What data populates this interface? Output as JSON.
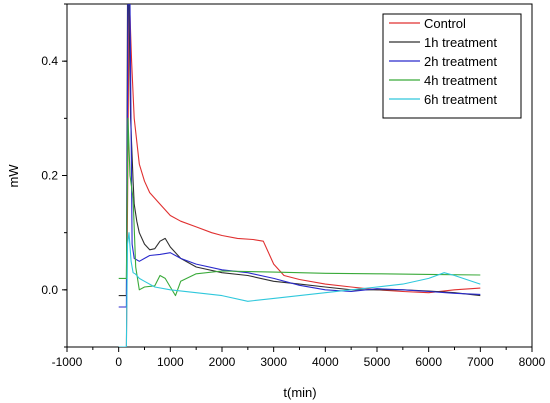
{
  "chart_data": {
    "type": "line",
    "xlabel": "t(min)",
    "ylabel": "mW",
    "xlim": [
      -1000,
      8000
    ],
    "ylim": [
      -0.1,
      0.5
    ],
    "xticks": [
      -1000,
      0,
      1000,
      2000,
      3000,
      4000,
      5000,
      6000,
      7000,
      8000
    ],
    "yticks": [
      0.0,
      0.2,
      0.4
    ],
    "xtick_labels": [
      "-1000",
      "0",
      "1000",
      "2000",
      "3000",
      "4000",
      "5000",
      "6000",
      "7000",
      "8000"
    ],
    "ytick_labels": [
      "0.0",
      "0.2",
      "0.4"
    ],
    "grid": false,
    "legend_position": "top-right",
    "series": [
      {
        "name": "Control",
        "color": "#e03030",
        "x": [
          0,
          150,
          180,
          200,
          220,
          250,
          300,
          400,
          500,
          600,
          800,
          1000,
          1200,
          1500,
          1800,
          2000,
          2300,
          2600,
          2800,
          3000,
          3200,
          3500,
          4000,
          4500,
          5000,
          5500,
          6000,
          6500,
          7000
        ],
        "y": [
          -0.1,
          -0.1,
          0.25,
          0.5,
          0.48,
          0.4,
          0.3,
          0.22,
          0.19,
          0.17,
          0.15,
          0.13,
          0.12,
          0.11,
          0.1,
          0.095,
          0.09,
          0.088,
          0.085,
          0.045,
          0.025,
          0.018,
          0.01,
          0.005,
          0.0,
          -0.003,
          -0.005,
          0.0,
          0.003
        ]
      },
      {
        "name": "1h treatment",
        "color": "#303030",
        "x": [
          0,
          150,
          170,
          200,
          230,
          280,
          300,
          350,
          400,
          500,
          600,
          700,
          800,
          900,
          1000,
          1200,
          1500,
          2000,
          2500,
          3000,
          3500,
          4000,
          4500,
          5000,
          5500,
          6000,
          6500,
          7000
        ],
        "y": [
          -0.01,
          -0.01,
          0.5,
          0.5,
          0.3,
          0.19,
          0.15,
          0.12,
          0.1,
          0.08,
          0.07,
          0.072,
          0.085,
          0.09,
          0.075,
          0.055,
          0.04,
          0.03,
          0.025,
          0.015,
          0.01,
          0.005,
          0.0,
          0.0,
          0.0,
          -0.002,
          -0.005,
          -0.01
        ]
      },
      {
        "name": "2h treatment",
        "color": "#2a2acc",
        "x": [
          0,
          150,
          180,
          220,
          260,
          300,
          400,
          500,
          600,
          800,
          1000,
          1200,
          1500,
          2000,
          2500,
          3000,
          3500,
          4000,
          4500,
          5000,
          5500,
          6000,
          6500,
          7000
        ],
        "y": [
          -0.03,
          -0.03,
          0.5,
          0.5,
          0.08,
          0.055,
          0.05,
          0.055,
          0.06,
          0.062,
          0.065,
          0.055,
          0.045,
          0.035,
          0.03,
          0.02,
          0.008,
          0.0,
          -0.003,
          0.002,
          0.0,
          -0.003,
          -0.006,
          -0.008
        ]
      },
      {
        "name": "4h treatment",
        "color": "#3aaa3a",
        "x": [
          0,
          150,
          180,
          220,
          280,
          330,
          400,
          500,
          700,
          800,
          900,
          1000,
          1100,
          1200,
          1500,
          2000,
          3000,
          4000,
          5000,
          6000,
          7000
        ],
        "y": [
          0.02,
          0.02,
          0.3,
          0.2,
          0.16,
          0.04,
          0.0,
          0.005,
          0.007,
          0.025,
          0.02,
          0.005,
          -0.01,
          0.015,
          0.028,
          0.033,
          0.031,
          0.029,
          0.028,
          0.027,
          0.026
        ]
      },
      {
        "name": "6h treatment",
        "color": "#30c8dc",
        "x": [
          0,
          150,
          170,
          200,
          240,
          280,
          320,
          400,
          500,
          700,
          1000,
          1500,
          2000,
          2500,
          3000,
          3500,
          4000,
          4500,
          5000,
          5500,
          6000,
          6300,
          6500,
          7000
        ],
        "y": [
          -0.1,
          -0.1,
          0.08,
          0.1,
          0.05,
          0.03,
          0.028,
          0.02,
          0.015,
          0.005,
          0.0,
          -0.005,
          -0.01,
          -0.02,
          -0.015,
          -0.01,
          -0.005,
          0.0,
          0.005,
          0.01,
          0.02,
          0.03,
          0.025,
          0.01
        ]
      }
    ]
  }
}
